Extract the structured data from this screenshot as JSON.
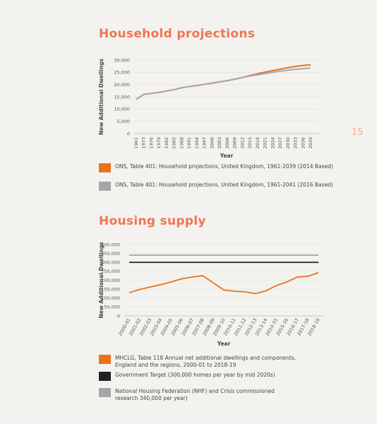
{
  "page_number": 15,
  "chart_data": [
    {
      "type": "line",
      "title": "Household projections",
      "x_label": "Year",
      "y_label": "New Additional Dwellings",
      "categories": [
        "1961",
        "1973",
        "1976",
        "1979",
        "1982",
        "1985",
        "1988",
        "1991",
        "1994",
        "1997",
        "2000",
        "2003",
        "2006",
        "2009",
        "2012",
        "2015",
        "2018",
        "2021",
        "2024",
        "2027",
        "2030",
        "2033",
        "2036",
        "2039"
      ],
      "series": [
        {
          "name": "ONS, Table 401: Household projections, United Kingdom, 1961-2039 (2014 Based)",
          "color": "#e8731c",
          "values": [
            14000,
            16000,
            16400,
            16800,
            17400,
            17900,
            18700,
            19200,
            19600,
            20100,
            20600,
            21100,
            21600,
            22200,
            22900,
            23700,
            24400,
            25100,
            25700,
            26300,
            26900,
            27400,
            27800,
            28100
          ]
        },
        {
          "name": "ONS, Table 401: Household projections, United Kingdom, 1961-2041 (2016 Based)",
          "color": "#a6a6a6",
          "values": [
            14000,
            16000,
            16400,
            16800,
            17400,
            17900,
            18700,
            19200,
            19600,
            20100,
            20600,
            21100,
            21600,
            22200,
            22900,
            23500,
            24000,
            24500,
            25000,
            25500,
            25900,
            26200,
            26500,
            26800
          ]
        }
      ],
      "ylim": [
        0,
        30000
      ],
      "yticks": [
        0,
        {
          "value": 5000,
          "label": "5,000"
        },
        {
          "value": 10000,
          "label": "10,000"
        },
        {
          "value": 15000,
          "label": "15,000"
        },
        {
          "value": 20000,
          "label": "20,000"
        },
        {
          "value": 25000,
          "label": "25,000"
        },
        {
          "value": 30000,
          "label": "30,000"
        }
      ],
      "grid": true
    },
    {
      "type": "line",
      "title": "Housing supply",
      "x_label": "Year",
      "y_label": "New Additional Dwellings",
      "categories": [
        "2000-01",
        "2001-02",
        "2002-03",
        "2003-04",
        "2004-05",
        "2005-06",
        "2006-07",
        "2007-08",
        "2008-09",
        "2009-10",
        "2010-11",
        "2011-12",
        "2012-13",
        "2013-14",
        "2014-15",
        "2015-16",
        "2016-17",
        "2017-18",
        "2018-19"
      ],
      "series": [
        {
          "name": "MHCLG, Table 118  Annual net additional dwellings and components, England and the regions, 2000-01 to 2018-19",
          "color": "#e8731c",
          "values": [
            130000,
            148000,
            162000,
            175000,
            190000,
            208000,
            218000,
            225000,
            185000,
            145000,
            138000,
            135000,
            125000,
            140000,
            170000,
            190000,
            218000,
            222000,
            242000
          ]
        },
        {
          "name": "Government Target (300,000 homes per year by mid 2020s)",
          "color": "#222222",
          "values": [
            300000,
            300000,
            300000,
            300000,
            300000,
            300000,
            300000,
            300000,
            300000,
            300000,
            300000,
            300000,
            300000,
            300000,
            300000,
            300000,
            300000,
            300000,
            300000
          ]
        },
        {
          "name": "National Housing Federation (NHF) and Crisis commissioned research 340,000 per year)",
          "color": "#a6a6a6",
          "values": [
            340000,
            340000,
            340000,
            340000,
            340000,
            340000,
            340000,
            340000,
            340000,
            340000,
            340000,
            340000,
            340000,
            340000,
            340000,
            340000,
            340000,
            340000,
            340000
          ]
        }
      ],
      "ylim": [
        0,
        400000
      ],
      "yticks": [
        0,
        {
          "value": 50000,
          "label": "50,000"
        },
        {
          "value": 100000,
          "label": "100,000"
        },
        {
          "value": 150000,
          "label": "150,000"
        },
        {
          "value": 200000,
          "label": "200,000"
        },
        {
          "value": 250000,
          "label": "250,000"
        },
        {
          "value": 300000,
          "label": "300,000"
        },
        {
          "value": 350000,
          "label": "350,000"
        },
        {
          "value": 400000,
          "label": "400,000"
        }
      ],
      "grid": true
    }
  ]
}
